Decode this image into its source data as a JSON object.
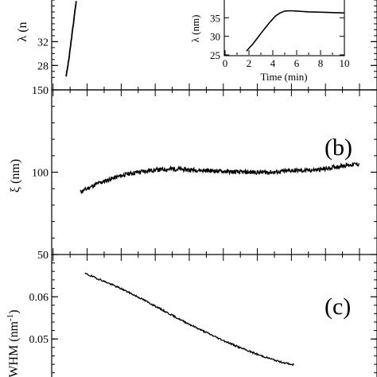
{
  "chart_data": [
    {
      "type": "line",
      "panel_label": "",
      "ylabel": "λ (n",
      "yticks": [
        "28",
        "32"
      ],
      "ylim": [
        25.5,
        39
      ],
      "xlim": [
        0,
        10
      ],
      "series": [
        {
          "x": [
            1.75,
            1.8,
            1.9,
            2.0,
            2.1,
            2.2,
            2.3
          ],
          "y": [
            26.2,
            27.0,
            29.0,
            31.5,
            34.0,
            36.5,
            39.0
          ]
        }
      ],
      "inset": {
        "type": "line",
        "xlabel": "Time (min)",
        "ylabel": "λ (nm)",
        "xticks": [
          "0",
          "2",
          "4",
          "6",
          "8",
          "10"
        ],
        "yticks": [
          "25",
          "30",
          "35"
        ],
        "xlim": [
          0,
          10
        ],
        "ylim": [
          25,
          40
        ],
        "series": [
          {
            "x": [
              1.8,
              2.0,
              2.3,
              2.7,
              3.2,
              3.7,
              4.2,
              4.6,
              5.0,
              5.5,
              6.0,
              7.0,
              8.0,
              9.0,
              10.0
            ],
            "y": [
              26.0,
              26.8,
              27.8,
              29.5,
              31.6,
              33.6,
              35.4,
              36.3,
              36.8,
              36.9,
              36.8,
              36.6,
              36.5,
              36.4,
              36.3
            ]
          }
        ]
      }
    },
    {
      "type": "line",
      "panel_label": "(b)",
      "ylabel": "ξ (nm)",
      "yticks": [
        "50",
        "100",
        "150"
      ],
      "ylim": [
        50,
        150
      ],
      "xlim": [
        0,
        10
      ],
      "series": [
        {
          "x": [
            1.8,
            2.0,
            2.3,
            2.7,
            3.2,
            3.8,
            4.5,
            5.5,
            6.5,
            7.5,
            8.0,
            8.5,
            9.0,
            9.5,
            10.0
          ],
          "y": [
            88,
            90,
            93,
            96,
            99,
            101,
            102,
            101,
            100,
            100,
            101,
            101,
            102,
            104,
            105
          ]
        }
      ]
    },
    {
      "type": "line",
      "panel_label": "(c)",
      "ylabel": "WHM (nm",
      "ylabel_sup": "-1",
      "ylabel_suffix": ")",
      "yticks": [
        "0.05",
        "0.06"
      ],
      "ylim": [
        0.041,
        0.07
      ],
      "xlim": [
        0,
        10
      ],
      "series": [
        {
          "x": [
            2.05,
            2.5,
            3.0,
            3.5,
            4.0,
            4.5,
            5.0,
            5.5,
            6.0,
            6.5,
            7.0,
            7.4
          ],
          "y": [
            0.0655,
            0.0638,
            0.0618,
            0.0595,
            0.057,
            0.0545,
            0.0522,
            0.05,
            0.048,
            0.0462,
            0.0447,
            0.0438
          ]
        }
      ]
    }
  ]
}
